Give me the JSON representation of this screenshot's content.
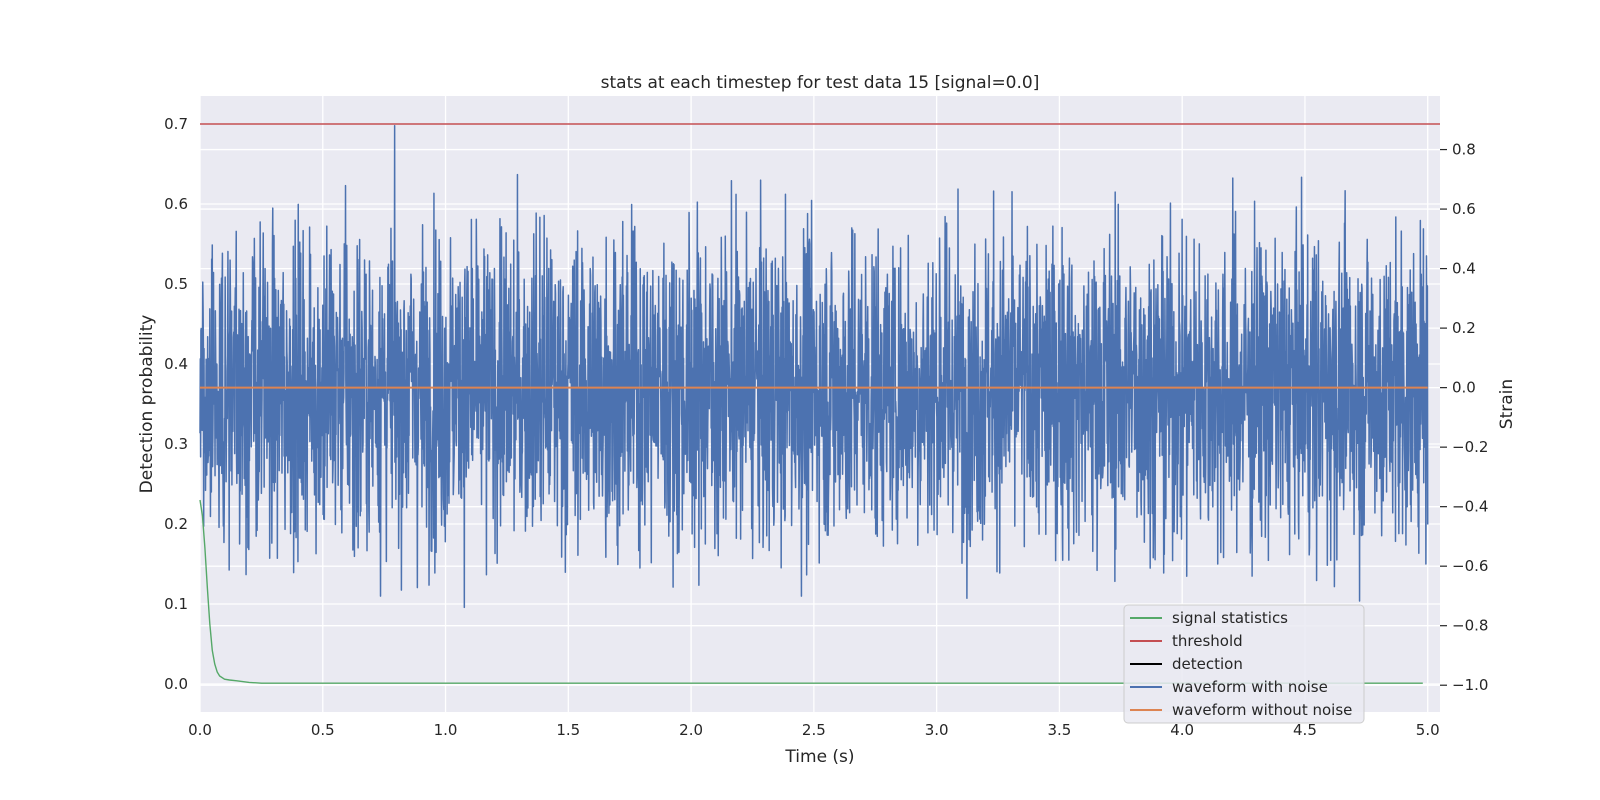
{
  "chart_data": {
    "type": "line",
    "title": "stats at each timestep for test data 15 [signal=0.0]",
    "xlabel": "Time (s)",
    "ylabel": "Detection probability",
    "y2label": "Strain",
    "xlim": [
      0.0,
      5.05
    ],
    "ylim": [
      -0.035,
      0.735
    ],
    "y2lim": [
      -1.09,
      0.98
    ],
    "x_ticks": [
      "0.0",
      "0.5",
      "1.0",
      "1.5",
      "2.0",
      "2.5",
      "3.0",
      "3.5",
      "4.0",
      "4.5",
      "5.0"
    ],
    "y_ticks": [
      "0.0",
      "0.1",
      "0.2",
      "0.3",
      "0.4",
      "0.5",
      "0.6",
      "0.7"
    ],
    "y2_ticks": [
      "−1.0",
      "−0.8",
      "−0.6",
      "−0.4",
      "−0.2",
      "0.0",
      "0.2",
      "0.4",
      "0.6",
      "0.8"
    ],
    "grid": true,
    "legend_position": "lower-right",
    "series": [
      {
        "name": "signal statistics",
        "axis": "left",
        "color": "#55a868",
        "x": [
          0.0,
          0.01,
          0.02,
          0.03,
          0.04,
          0.05,
          0.06,
          0.07,
          0.08,
          0.1,
          0.12,
          0.15,
          0.2,
          0.25,
          0.3,
          0.5,
          0.8,
          1.0,
          2.0,
          3.0,
          4.0,
          4.98
        ],
        "y": [
          0.23,
          0.21,
          0.17,
          0.12,
          0.075,
          0.042,
          0.025,
          0.015,
          0.01,
          0.006,
          0.005,
          0.004,
          0.002,
          0.001,
          0.001,
          0.001,
          0.001,
          0.001,
          0.001,
          0.001,
          0.001,
          0.001
        ]
      },
      {
        "name": "threshold",
        "axis": "left",
        "color": "#c44e52",
        "x": [
          0.0,
          5.05
        ],
        "y": [
          0.7,
          0.7
        ]
      },
      {
        "name": "detection",
        "axis": "left",
        "color": "#000000",
        "x": [],
        "y": []
      },
      {
        "name": "waveform with noise",
        "axis": "right",
        "color": "#4c72b0",
        "x_range": [
          0.0,
          5.0
        ],
        "num_points": 4000,
        "std": 0.26,
        "min": -0.99,
        "max": 0.88
      },
      {
        "name": "waveform without noise",
        "axis": "right",
        "color": "#dd8452",
        "x": [
          0.0,
          5.0
        ],
        "y": [
          0.0,
          0.0
        ]
      }
    ]
  }
}
